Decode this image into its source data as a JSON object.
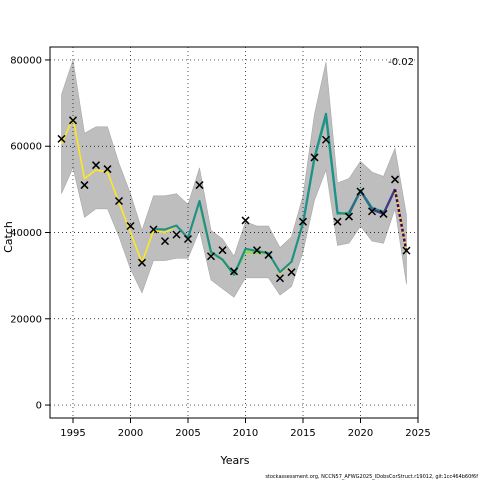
{
  "footer": "stockassessment.org, NCCN57_AFWG2025_IDobsCorStruct.r19012, git:1cc464b60f6f",
  "chart_data": {
    "type": "line",
    "xlabel": "Years",
    "ylabel": "Catch",
    "xlim": [
      1993,
      2025
    ],
    "ylim": [
      -3000,
      83000
    ],
    "xticks": [
      1995,
      2000,
      2005,
      2010,
      2015,
      2020,
      2025
    ],
    "yticks": [
      0,
      20000,
      40000,
      60000,
      80000
    ],
    "grid": true,
    "corner_label": "-0.02",
    "observed": {
      "x": [
        1994,
        1995,
        1996,
        1997,
        1998,
        1999,
        2000,
        2001,
        2002,
        2003,
        2004,
        2005,
        2006,
        2007,
        2008,
        2009,
        2010,
        2011,
        2012,
        2013,
        2014,
        2015,
        2016,
        2017,
        2018,
        2019,
        2020,
        2021,
        2022,
        2023,
        2024
      ],
      "y": [
        61700,
        66000,
        51000,
        55600,
        54700,
        47300,
        41500,
        33000,
        40700,
        38000,
        39500,
        38500,
        51000,
        34500,
        35900,
        31000,
        42800,
        35900,
        34800,
        29400,
        30800,
        42500,
        57400,
        61500,
        42500,
        43700,
        49500,
        44900,
        44300,
        52300,
        35800
      ]
    },
    "confidence_band": {
      "x": [
        1994,
        1995,
        1996,
        1997,
        1998,
        1999,
        2000,
        2001,
        2002,
        2003,
        2004,
        2005,
        2006,
        2007,
        2008,
        2009,
        2010,
        2011,
        2012,
        2013,
        2014,
        2015,
        2016,
        2017,
        2018,
        2019,
        2020,
        2021,
        2022,
        2023,
        2024
      ],
      "lower": [
        49000,
        55000,
        43500,
        45500,
        45500,
        39000,
        31500,
        26000,
        33500,
        33500,
        34000,
        34000,
        40500,
        29000,
        27000,
        25000,
        29500,
        29500,
        29500,
        25500,
        27500,
        35500,
        47500,
        54500,
        37000,
        37500,
        41500,
        38000,
        37500,
        45500,
        28000
      ],
      "upper": [
        72000,
        80000,
        63000,
        64500,
        64500,
        56000,
        49000,
        40500,
        48500,
        48500,
        49000,
        46500,
        55000,
        40500,
        38500,
        34500,
        42500,
        41500,
        41500,
        36500,
        39000,
        48500,
        67500,
        79500,
        51500,
        52500,
        56500,
        54000,
        53000,
        59500,
        44000
      ]
    },
    "series": [
      {
        "color": "#fde725",
        "x": [
          1994,
          1995,
          1996,
          1997,
          1998,
          1999,
          2000,
          2001,
          2002,
          2003,
          2004,
          2005,
          2006,
          2007,
          2008,
          2009,
          2010,
          2011,
          2012,
          2013,
          2014,
          2015,
          2016,
          2017,
          2018,
          2019,
          2020,
          2021,
          2022,
          2023,
          2024
        ],
        "y": [
          60500,
          66500,
          52500,
          54500,
          54000,
          47000,
          40000,
          33000,
          40500,
          40000,
          41500,
          38500,
          47000,
          35500,
          33500,
          30000,
          36000,
          35500,
          35000,
          30500,
          33000,
          42000,
          57000,
          67000,
          44500,
          44000,
          49500,
          45500,
          44500,
          50000,
          35500
        ]
      },
      {
        "color": "#8fd744",
        "x": [
          2006,
          2007,
          2008,
          2009,
          2010,
          2011,
          2012
        ],
        "y": [
          46800,
          35200,
          33800,
          30300,
          35500,
          35300,
          35100
        ]
      },
      {
        "color": "#35b779",
        "x": [
          2015,
          2016,
          2017,
          2018,
          2019,
          2020,
          2021,
          2022
        ],
        "y": [
          42000,
          57200,
          66800,
          44300,
          44600,
          49800,
          45200,
          44600
        ]
      },
      {
        "color": "#21908d",
        "x": [
          2002,
          2003,
          2004,
          2005,
          2006,
          2007,
          2008,
          2009,
          2010,
          2011,
          2012,
          2013,
          2014,
          2015,
          2016,
          2017,
          2018,
          2019,
          2020,
          2021,
          2022
        ],
        "y": [
          40800,
          40700,
          41600,
          38700,
          47300,
          35500,
          33700,
          30200,
          36200,
          35700,
          35200,
          30800,
          33200,
          42200,
          57400,
          67500,
          44600,
          44200,
          49700,
          45700,
          44800
        ]
      },
      {
        "color": "#31688e",
        "x": [
          2019,
          2020,
          2021,
          2022,
          2023
        ],
        "y": [
          44500,
          49600,
          45400,
          44400,
          50100
        ]
      },
      {
        "color": "#443a83",
        "x": [
          2021,
          2022,
          2023
        ],
        "y": [
          45300,
          44300,
          50000
        ]
      },
      {
        "color": "#440154",
        "x": [
          2023,
          2024
        ],
        "y": [
          50000,
          35500
        ],
        "dashed": true
      }
    ]
  }
}
